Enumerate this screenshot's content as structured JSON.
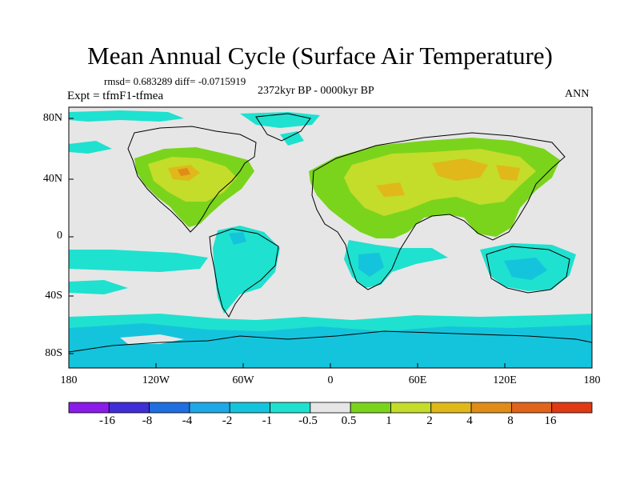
{
  "title": "Mean Annual Cycle (Surface Air Temperature)",
  "stats": "rmsd= 0.683289 diff= -0.0715919",
  "expt": "Expt = tfmF1-tfmea",
  "period": "2372kyr BP - 0000kyr BP",
  "season": "ANN",
  "lat_labels": [
    "80N",
    "40N",
    "0",
    "40S",
    "80S"
  ],
  "lon_labels": [
    "180",
    "120W",
    "60W",
    "0",
    "60E",
    "120E",
    "180"
  ],
  "colorbar": {
    "labels": [
      "-16",
      "-8",
      "-4",
      "-2",
      "-1",
      "-0.5",
      "0.5",
      "1",
      "2",
      "4",
      "8",
      "16"
    ],
    "colors": [
      "#8a1be8",
      "#3f2fd6",
      "#1f6fe0",
      "#1ea8e6",
      "#14c4dc",
      "#1fe1cf",
      "#e6e6e6",
      "#7ad41c",
      "#c4dc2a",
      "#e0b81a",
      "#e08c18",
      "#e0641a",
      "#e03a14"
    ]
  },
  "colors": {
    "neutral": "#e6e6e6",
    "cool": "#1fe1cf",
    "cool2": "#14c4dc",
    "warm": "#7ad41c",
    "warm2": "#c4dc2a",
    "hot": "#e0b81a",
    "hotter": "#e08c18"
  }
}
